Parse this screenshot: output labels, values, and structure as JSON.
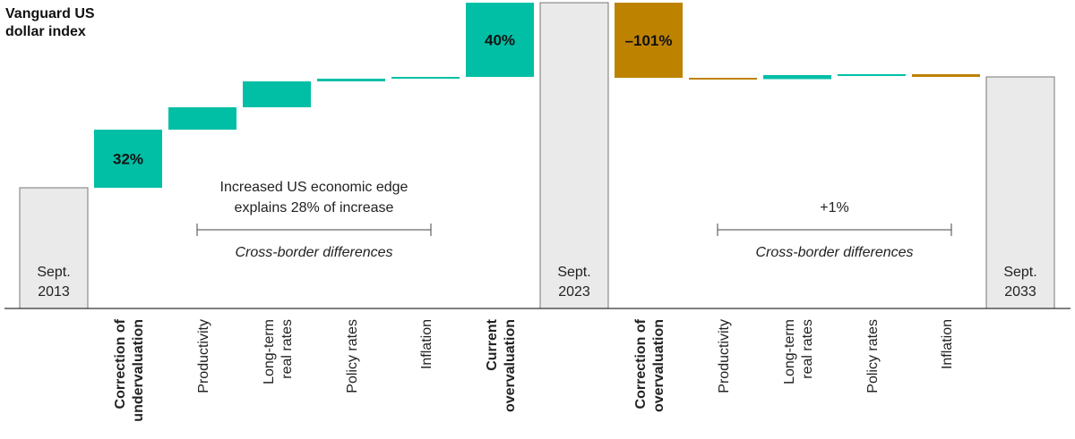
{
  "chart_data": {
    "type": "bar",
    "subtype": "waterfall",
    "ylabel": "Vanguard US dollar index",
    "categories": [
      "Sept. 2013",
      "Correction of undervaluation",
      "Productivity",
      "Long-term real rates",
      "Policy rates",
      "Inflation",
      "Current overvaluation",
      "Sept. 2023",
      "Correction of overvaluation",
      "Productivity",
      "Long-term real rates",
      "Policy rates",
      "Inflation",
      "Sept. 2033"
    ],
    "bars": [
      {
        "label": "Sept. 2013",
        "kind": "total",
        "start": 0,
        "end": 135
      },
      {
        "label": "Correction of undervaluation",
        "kind": "increase",
        "start": 135,
        "end": 200,
        "data_label": "32%"
      },
      {
        "label": "Productivity",
        "kind": "increase",
        "start": 200,
        "end": 225
      },
      {
        "label": "Long-term real rates",
        "kind": "increase",
        "start": 225,
        "end": 254
      },
      {
        "label": "Policy rates",
        "kind": "increase",
        "start": 254,
        "end": 257
      },
      {
        "label": "Inflation",
        "kind": "increase",
        "start": 257,
        "end": 259
      },
      {
        "label": "Current overvaluation",
        "kind": "increase",
        "start": 259,
        "end": 342,
        "data_label": "40%"
      },
      {
        "label": "Sept. 2023",
        "kind": "total",
        "start": 0,
        "end": 342
      },
      {
        "label": "Correction of overvaluation",
        "kind": "decrease",
        "start": 342,
        "end": 258,
        "data_label": "–101%"
      },
      {
        "label": "Productivity",
        "kind": "decrease",
        "start": 258,
        "end": 256.5
      },
      {
        "label": "Long-term real rates",
        "kind": "increase",
        "start": 256.5,
        "end": 261
      },
      {
        "label": "Policy rates",
        "kind": "increase",
        "start": 261,
        "end": 262
      },
      {
        "label": "Inflation",
        "kind": "decrease",
        "start": 262,
        "end": 259
      },
      {
        "label": "Sept. 2033",
        "kind": "total",
        "start": 0,
        "end": 259
      }
    ],
    "bold_categories": [
      "Correction of undervaluation",
      "Current overvaluation",
      "Correction of overvaluation"
    ],
    "annotations": [
      {
        "text": [
          "Increased US economic edge",
          "explains 28% of increase"
        ],
        "span_from": 2,
        "span_to": 5
      },
      {
        "text": [
          "+1%"
        ],
        "span_from": 9,
        "span_to": 12
      }
    ],
    "brackets": [
      {
        "label": "Cross-border differences",
        "from": 2,
        "to": 5
      },
      {
        "label": "Cross-border differences",
        "from": 9,
        "to": 12
      }
    ],
    "colors": {
      "total": "#eaeaea",
      "total_stroke": "#777777",
      "increase": "#00bfa5",
      "decrease": "#bd8200",
      "baseline": "#333333"
    },
    "grid": false,
    "legend": "none"
  }
}
